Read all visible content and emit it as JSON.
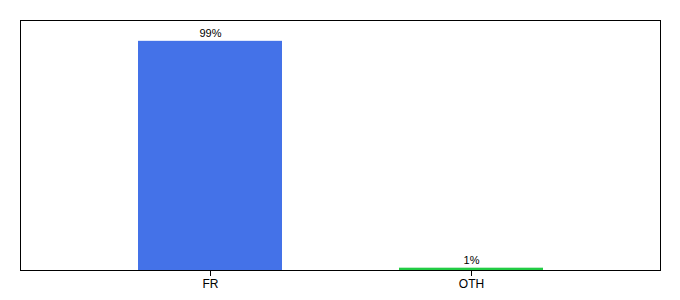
{
  "chart_data": {
    "type": "bar",
    "categories": [
      "FR",
      "OTH"
    ],
    "values": [
      99,
      1
    ],
    "value_labels": [
      "99%",
      "1%"
    ],
    "colors": [
      "#4472e8",
      "#22cc44"
    ],
    "ylim": [
      0,
      108
    ],
    "data_labels": true,
    "tick_labels": "x"
  }
}
